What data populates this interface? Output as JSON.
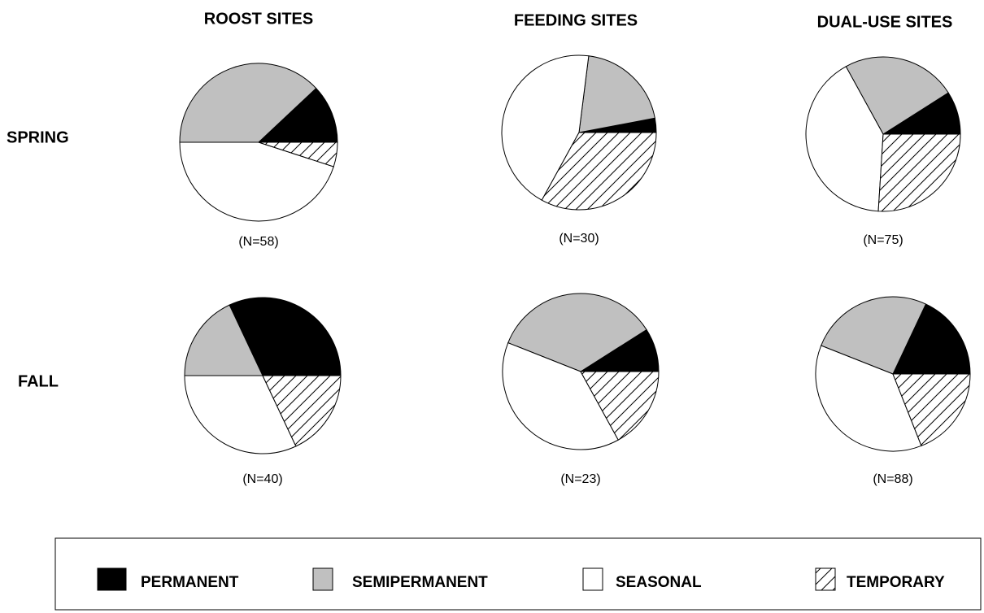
{
  "columns": [
    "ROOST SITES",
    "FEEDING SITES",
    "DUAL-USE SITES"
  ],
  "rows": [
    "SPRING",
    "FALL"
  ],
  "chart_data": [
    {
      "type": "pie",
      "label": "(N=58)",
      "categories": [
        "PERMANENT",
        "SEMIPERMANENT",
        "SEASONAL",
        "TEMPORARY"
      ],
      "colors": [
        "#000000",
        "#c0c0c0",
        "#ffffff",
        "hatch"
      ],
      "values": [
        12,
        38,
        45,
        5
      ]
    },
    {
      "type": "pie",
      "label": "(N=30)",
      "categories": [
        "PERMANENT",
        "SEMIPERMANENT",
        "SEASONAL",
        "TEMPORARY"
      ],
      "colors": [
        "#000000",
        "#c0c0c0",
        "#ffffff",
        "hatch"
      ],
      "values": [
        3,
        20,
        44,
        33
      ]
    },
    {
      "type": "pie",
      "label": "(N=75)",
      "categories": [
        "PERMANENT",
        "SEMIPERMANENT",
        "SEASONAL",
        "TEMPORARY"
      ],
      "colors": [
        "#000000",
        "#c0c0c0",
        "#ffffff",
        "hatch"
      ],
      "values": [
        9,
        24,
        41,
        26
      ]
    },
    {
      "type": "pie",
      "label": "(N=40)",
      "categories": [
        "PERMANENT",
        "SEMIPERMANENT",
        "SEASONAL",
        "TEMPORARY"
      ],
      "colors": [
        "#000000",
        "#c0c0c0",
        "#ffffff",
        "hatch"
      ],
      "values": [
        32,
        18,
        32,
        18
      ]
    },
    {
      "type": "pie",
      "label": "(N=23)",
      "categories": [
        "PERMANENT",
        "SEMIPERMANENT",
        "SEASONAL",
        "TEMPORARY"
      ],
      "colors": [
        "#000000",
        "#c0c0c0",
        "#ffffff",
        "hatch"
      ],
      "values": [
        9,
        35,
        39,
        17
      ]
    },
    {
      "type": "pie",
      "label": "(N=88)",
      "categories": [
        "PERMANENT",
        "SEMIPERMANENT",
        "SEASONAL",
        "TEMPORARY"
      ],
      "colors": [
        "#000000",
        "#c0c0c0",
        "#ffffff",
        "hatch"
      ],
      "values": [
        18,
        26,
        37,
        19
      ]
    }
  ]
}
